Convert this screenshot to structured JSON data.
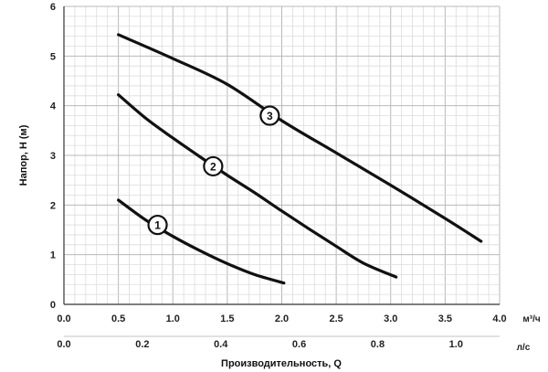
{
  "chart_data": {
    "type": "line",
    "ylabel": "Напор, Н (м)",
    "xlabel": "Производительность, Q",
    "x_unit": "м³/ч",
    "x2_unit": "л/с",
    "xlim": [
      0,
      4
    ],
    "ylim": [
      0,
      6
    ],
    "x_ticks": [
      "0.0",
      "0.5",
      "1.0",
      "1.5",
      "2.0",
      "2.5",
      "3.0",
      "3.5",
      "4.0"
    ],
    "x2_ticks": [
      "0.0",
      "0.2",
      "0.4",
      "0.6",
      "0.8",
      "1.0"
    ],
    "y_ticks": [
      "0",
      "1",
      "2",
      "3",
      "4",
      "5",
      "6"
    ],
    "grid": true,
    "series": [
      {
        "name": "1",
        "x": [
          0.5,
          0.75,
          1.0,
          1.25,
          1.5,
          1.75,
          2.02
        ],
        "y": [
          2.1,
          1.7,
          1.37,
          1.08,
          0.82,
          0.6,
          0.43
        ]
      },
      {
        "name": "2",
        "x": [
          0.5,
          0.75,
          1.0,
          1.25,
          1.5,
          1.75,
          2.0,
          2.25,
          2.5,
          2.75,
          3.05
        ],
        "y": [
          4.22,
          3.75,
          3.35,
          2.97,
          2.6,
          2.25,
          1.88,
          1.52,
          1.17,
          0.83,
          0.55
        ]
      },
      {
        "name": "3",
        "x": [
          0.5,
          1.0,
          1.5,
          2.0,
          2.5,
          3.0,
          3.5,
          3.83
        ],
        "y": [
          5.43,
          4.95,
          4.43,
          3.7,
          3.05,
          2.4,
          1.73,
          1.27
        ]
      }
    ],
    "labels": [
      {
        "text": "1",
        "x": 0.86,
        "y": 1.6
      },
      {
        "text": "2",
        "x": 1.37,
        "y": 2.78
      },
      {
        "text": "3",
        "x": 1.89,
        "y": 3.8
      }
    ]
  }
}
